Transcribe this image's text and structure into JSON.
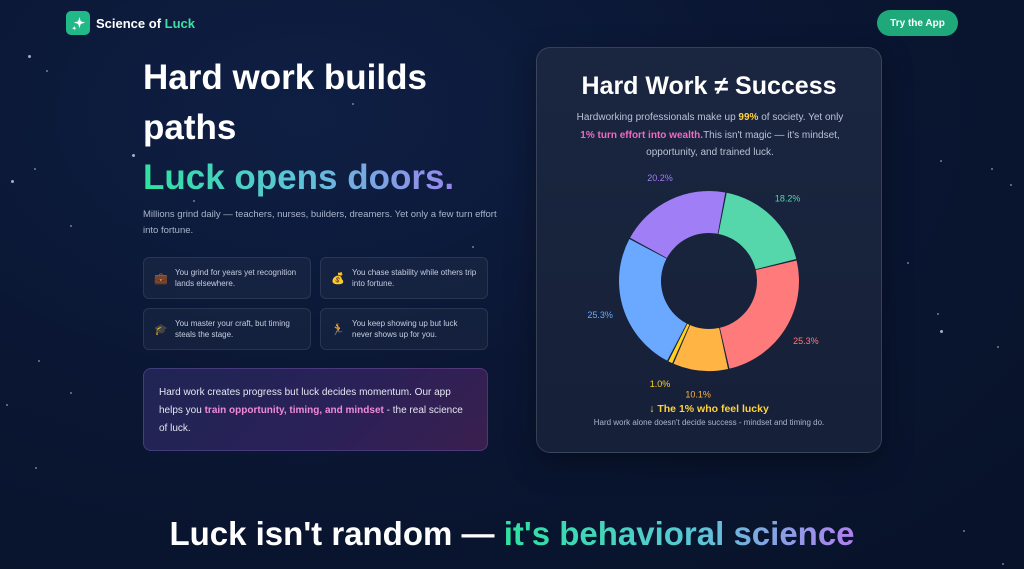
{
  "brand": {
    "name_prefix": "Science of ",
    "name_accent": "Luck",
    "logo_icon": "sparkle-icon"
  },
  "header": {
    "cta_label": "Try the App"
  },
  "hero": {
    "title_line1": "Hard work builds paths",
    "title_line2": "Luck opens doors.",
    "subtitle": "Millions grind daily — teachers, nurses, builders, dreamers. Yet only a few turn effort into fortune.",
    "cards": [
      {
        "icon": "💼",
        "icon_name": "briefcase-icon",
        "text": "You grind for years yet recognition lands elsewhere."
      },
      {
        "icon": "💰",
        "icon_name": "money-bag-icon",
        "text": "You chase stability while others trip into fortune."
      },
      {
        "icon": "🎓",
        "icon_name": "graduation-cap-icon",
        "text": "You master your craft, but timing steals the stage."
      },
      {
        "icon": "🏃",
        "icon_name": "runner-icon",
        "text": "You keep showing up but luck never shows up for you."
      }
    ],
    "note": {
      "text_before": "Hard work creates progress but luck decides momentum. Our app helps you ",
      "highlight": "train opportunity, timing, and mindset",
      "text_after": " - the real science of luck."
    }
  },
  "panel": {
    "title": "Hard Work ≠ Success",
    "desc_1": "Hardworking professionals make up ",
    "desc_pct": "99%",
    "desc_2": " of society. Yet only ",
    "desc_highlight": "1% turn effort into wealth.",
    "desc_3": "This isn't magic — it's mindset, opportunity, and trained luck.",
    "caption": "↓ The 1% who feel lucky",
    "footnote": "Hard work alone doesn't decide success - mindset and timing do."
  },
  "chart_data": {
    "type": "pie",
    "donut": true,
    "slices": [
      {
        "label": "18.2%",
        "value": 18.2,
        "color": "#55d6ab"
      },
      {
        "label": "25.3%",
        "value": 25.3,
        "color": "#ff7a7a"
      },
      {
        "label": "10.1%",
        "value": 10.1,
        "color": "#ffb444"
      },
      {
        "label": "1.0%",
        "value": 1.0,
        "color": "#ffd21e"
      },
      {
        "label": "25.3%",
        "value": 25.3,
        "color": "#6aa9ff"
      },
      {
        "label": "20.2%",
        "value": 20.2,
        "color": "#a07ef5"
      }
    ]
  },
  "bottom": {
    "text_before": "Luck isn't random — ",
    "highlight": "it's behavioral science"
  }
}
